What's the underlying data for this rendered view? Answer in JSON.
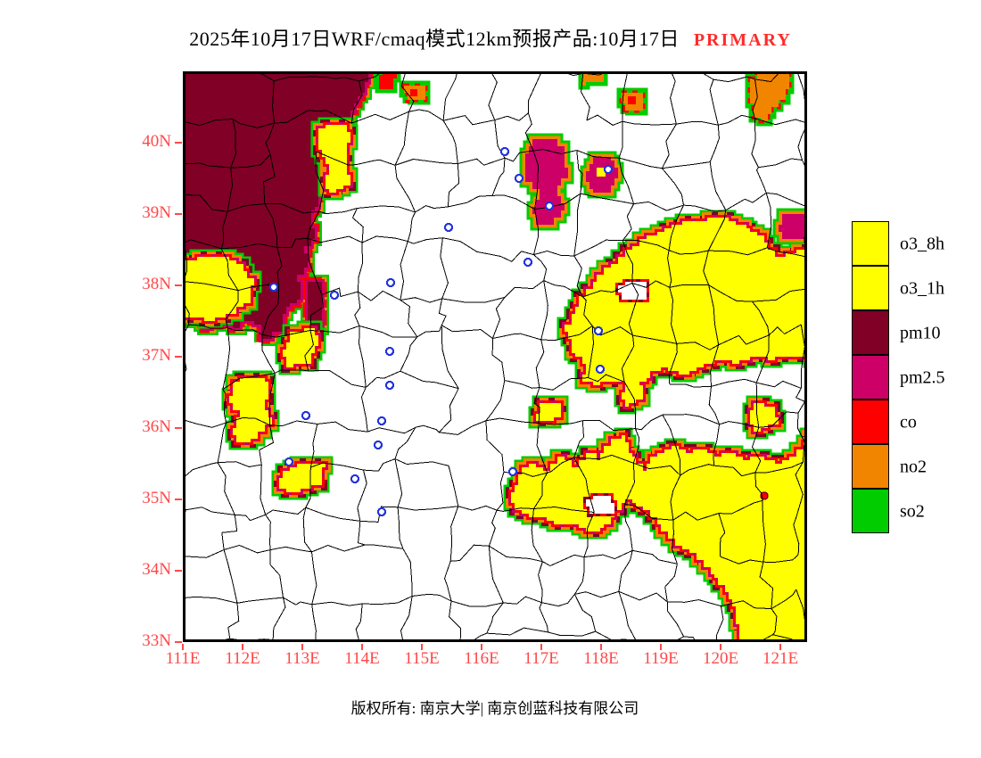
{
  "title": {
    "main": "2025年10月17日WRF/cmaq模式12km预报产品:10月17日",
    "tag": "PRIMARY",
    "tag_color": "#FF2A2A"
  },
  "legend": {
    "items": [
      {
        "label": "o3_8h",
        "color": "#FFFF00"
      },
      {
        "label": "o3_1h",
        "color": "#FFFF00"
      },
      {
        "label": "pm10",
        "color": "#800026"
      },
      {
        "label": "pm2.5",
        "color": "#CC0066"
      },
      {
        "label": "co",
        "color": "#FF0000"
      },
      {
        "label": "no2",
        "color": "#F28500"
      },
      {
        "label": "so2",
        "color": "#00CC00"
      }
    ]
  },
  "axes": {
    "lat_ticks": [
      "40N",
      "39N",
      "38N",
      "37N",
      "36N",
      "35N",
      "34N",
      "33N"
    ],
    "lon_ticks": [
      "111E",
      "112E",
      "113E",
      "114E",
      "115E",
      "116E",
      "117E",
      "118E",
      "119E",
      "120E",
      "121E"
    ],
    "tick_color": "#FF4848"
  },
  "map": {
    "city_marker_color": "#2233DD",
    "boundary_color": "#000000",
    "background": "#FFFFFF"
  },
  "footer": {
    "copyright": "版权所有: 南京大学| 南京创蓝科技有限公司"
  }
}
